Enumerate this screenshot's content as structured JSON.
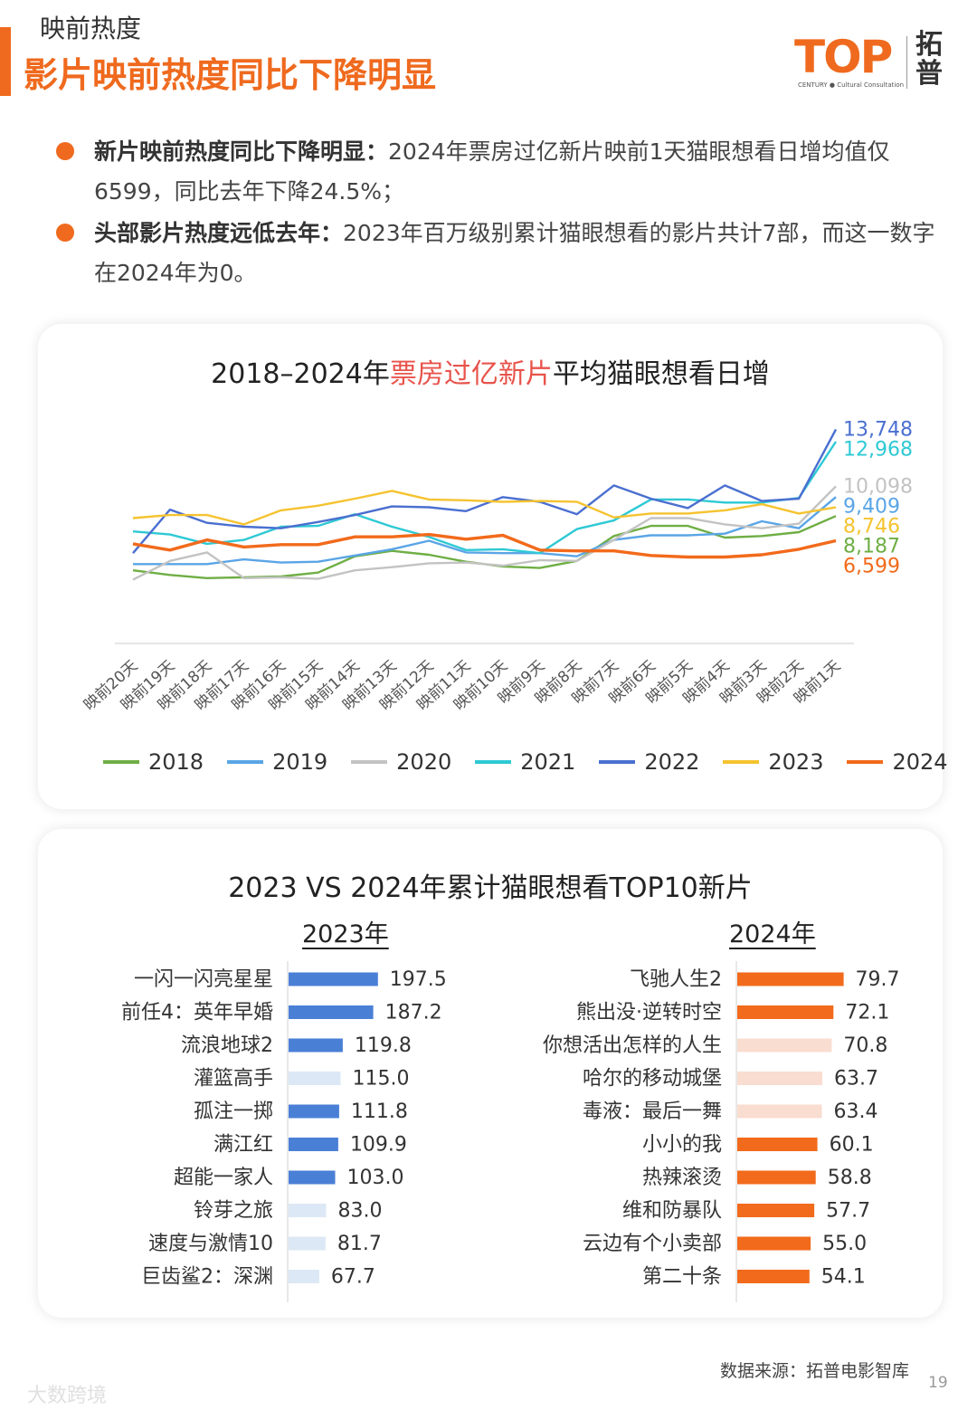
{
  "header": {
    "section_label": "映前热度",
    "headline": "影片映前热度同比下降明显",
    "logo_text": "TOP",
    "logo_sub": "CENTURY ● Cultural Consultation",
    "logo_cn": "拓普"
  },
  "bullets": [
    {
      "bold": "新片映前热度同比下降明显：",
      "text": "2024年票房过亿新片映前1天猫眼想看日增均值仅6599，同比去年下降24.5%；"
    },
    {
      "bold": "头部影片热度远低去年：",
      "text": "2023年百万级别累计猫眼想看的影片共计7部，而这一数字在2024年为0。"
    }
  ],
  "chart1": {
    "title_pre": "2018–2024年",
    "title_hl": "票房过亿新片",
    "title_post": "平均猫眼想看日增"
  },
  "chart2": {
    "title": "2023 VS 2024年累计猫眼想看TOP10新片",
    "left_title": "2023年",
    "right_title": "2024年"
  },
  "colors": {
    "accent": "#ef6a1e",
    "title_highlight": "#e8534b",
    "bar_2023": "#4a7fd6",
    "bar_2023_light": "#dce8f5",
    "bar_2024": "#f26a1b",
    "bar_2024_light": "#f9ddd0"
  },
  "footer": {
    "source": "数据来源：拓普电影智库",
    "page": "19",
    "watermark": "大数跨境"
  },
  "chart_data": [
    {
      "type": "line",
      "title": "2018–2024年票房过亿新片平均猫眼想看日增",
      "categories": [
        "映前20天",
        "映前19天",
        "映前18天",
        "映前17天",
        "映前16天",
        "映前15天",
        "映前14天",
        "映前13天",
        "映前12天",
        "映前11天",
        "映前10天",
        "映前9天",
        "映前8天",
        "映前7天",
        "映前6天",
        "映前5天",
        "映前4天",
        "映前3天",
        "映前2天",
        "映前1天"
      ],
      "ylim": [
        0,
        15000
      ],
      "grid": false,
      "legend": "bottom",
      "series": [
        {
          "name": "2018",
          "color": "#6fae45",
          "end_label": "8,187",
          "values": [
            4700,
            4400,
            4200,
            4250,
            4300,
            4550,
            5600,
            5950,
            5700,
            5250,
            4950,
            4850,
            5300,
            6900,
            7550,
            7550,
            6800,
            6900,
            7150,
            8187
          ]
        },
        {
          "name": "2019",
          "color": "#5aa5e6",
          "end_label": "9,409",
          "values": [
            5100,
            5100,
            5100,
            5400,
            5200,
            5250,
            5650,
            6050,
            6600,
            5850,
            5800,
            5800,
            5600,
            6650,
            6950,
            6950,
            7050,
            7850,
            7400,
            9409
          ]
        },
        {
          "name": "2020",
          "color": "#c3c3c3",
          "end_label": "10,098",
          "values": [
            4100,
            5300,
            5850,
            4200,
            4250,
            4150,
            4700,
            4900,
            5150,
            5200,
            5000,
            5350,
            5300,
            6650,
            8050,
            8050,
            7650,
            7400,
            7700,
            10098
          ]
        },
        {
          "name": "2021",
          "color": "#2ec9d4",
          "end_label": "12,968",
          "values": [
            7200,
            7000,
            6400,
            6650,
            7500,
            7550,
            8300,
            7500,
            6850,
            6000,
            6050,
            5800,
            7350,
            7900,
            9250,
            9250,
            9050,
            9050,
            9350,
            12968
          ]
        },
        {
          "name": "2022",
          "color": "#4a6fd0",
          "end_label": "13,748",
          "values": [
            5800,
            8600,
            7750,
            7500,
            7400,
            7800,
            8250,
            8800,
            8750,
            8500,
            9400,
            9100,
            8300,
            10150,
            9300,
            8700,
            10150,
            9150,
            9300,
            13748
          ]
        },
        {
          "name": "2023",
          "color": "#f5c330",
          "end_label": "8,746",
          "values": [
            8050,
            8250,
            8250,
            7650,
            8550,
            8850,
            9300,
            9800,
            9250,
            9200,
            9100,
            9150,
            9100,
            8100,
            8350,
            8350,
            8550,
            8950,
            8350,
            8746
          ]
        },
        {
          "name": "2024",
          "color": "#f26a1b",
          "end_label": "6,599",
          "values": [
            6400,
            6000,
            6650,
            6200,
            6350,
            6350,
            6850,
            6850,
            7000,
            6700,
            6950,
            6000,
            5950,
            5950,
            5650,
            5550,
            5550,
            5700,
            6050,
            6599
          ]
        }
      ]
    },
    {
      "type": "bar",
      "title": "2023年",
      "orientation": "horizontal",
      "xlim": [
        0,
        200
      ],
      "categories": [
        "一闪一闪亮星星",
        "前任4：英年早婚",
        "流浪地球2",
        "灌篮高手",
        "孤注一掷",
        "满江红",
        "超能一家人",
        "铃芽之旅",
        "速度与激情10",
        "巨齿鲨2：深渊"
      ],
      "values": [
        197.5,
        187.2,
        119.8,
        115.0,
        111.8,
        109.9,
        103.0,
        83.0,
        81.7,
        67.7
      ],
      "labels": [
        "197.5",
        "187.2",
        "119.8",
        "115.0",
        "111.8",
        "109.9",
        "103.0",
        "83.0",
        "81.7",
        "67.7"
      ],
      "highlighted": [
        true,
        true,
        true,
        false,
        true,
        true,
        true,
        false,
        false,
        false
      ]
    },
    {
      "type": "bar",
      "title": "2024年",
      "orientation": "horizontal",
      "xlim": [
        0,
        80
      ],
      "categories": [
        "飞驰人生2",
        "熊出没·逆转时空",
        "你想活出怎样的人生",
        "哈尔的移动城堡",
        "毒液：最后一舞",
        "小小的我",
        "热辣滚烫",
        "维和防暴队",
        "云边有个小卖部",
        "第二十条"
      ],
      "values": [
        79.7,
        72.1,
        70.8,
        63.7,
        63.4,
        60.1,
        58.8,
        57.7,
        55.0,
        54.1
      ],
      "labels": [
        "79.7",
        "72.1",
        "70.8",
        "63.7",
        "63.4",
        "60.1",
        "58.8",
        "57.7",
        "55.0",
        "54.1"
      ],
      "highlighted": [
        true,
        true,
        false,
        false,
        false,
        true,
        true,
        true,
        true,
        true
      ]
    }
  ]
}
